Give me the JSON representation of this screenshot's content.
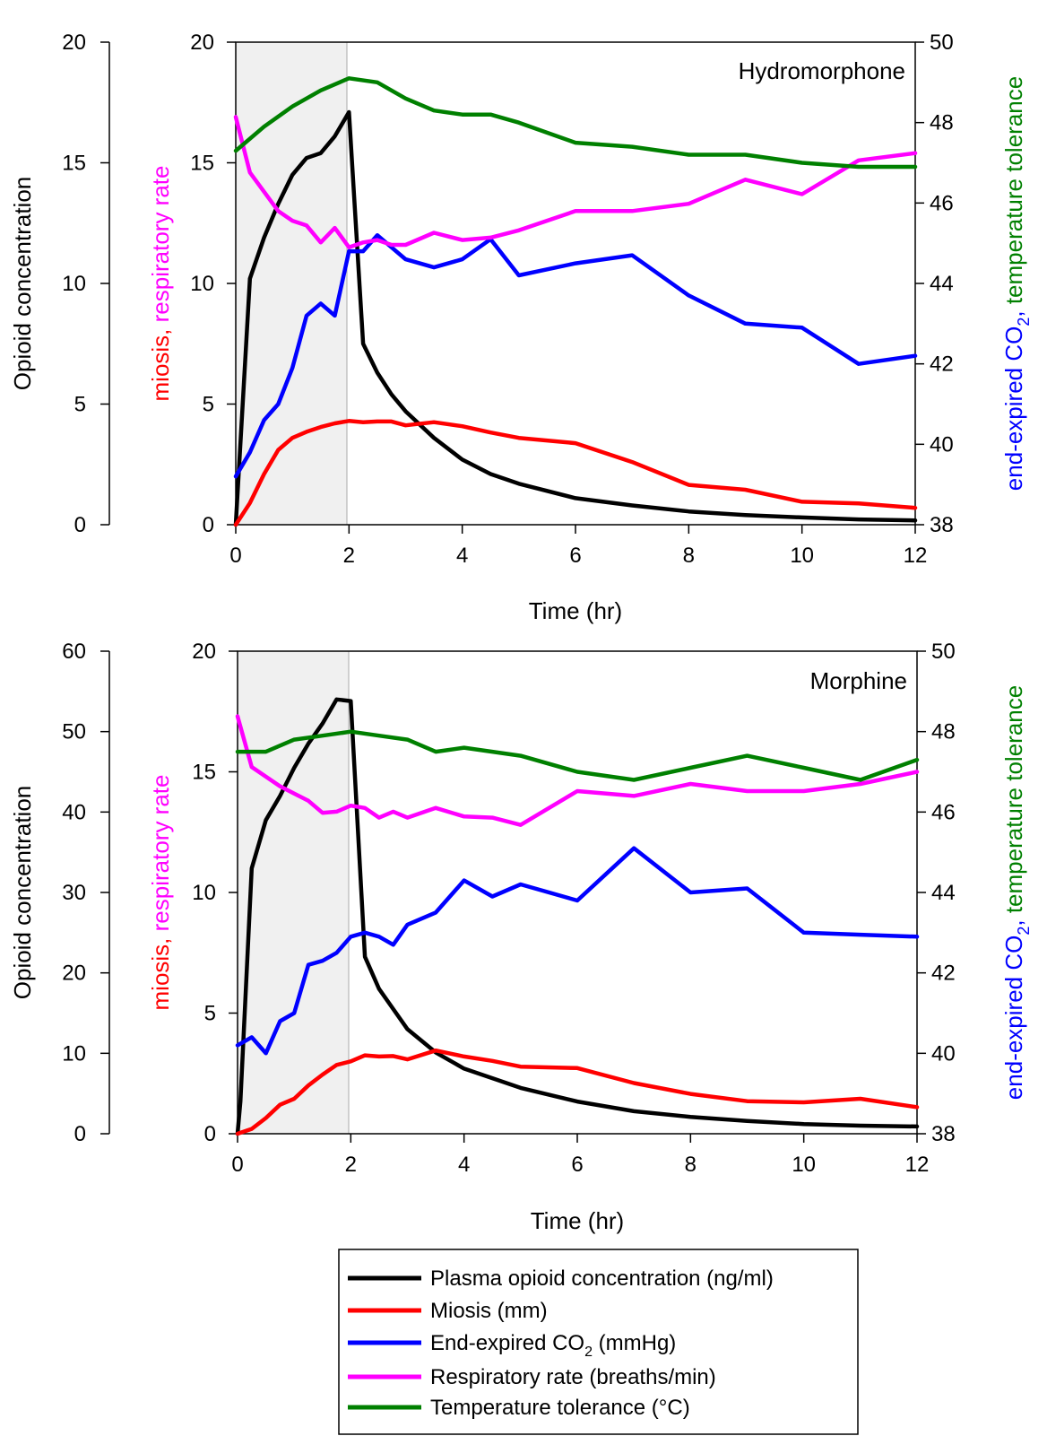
{
  "colors": {
    "concentration": "#000000",
    "miosis": "#ff0000",
    "co2": "#0000ff",
    "resp": "#ff00ff",
    "temp": "#008000",
    "shade": "#f0f0f0"
  },
  "legend": {
    "items": [
      {
        "key": "concentration",
        "label": "Plasma opioid concentration (ng/ml)"
      },
      {
        "key": "miosis",
        "label": "Miosis (mm)"
      },
      {
        "key": "co2",
        "label_pre": "End-expired CO",
        "label_sub": "2",
        "label_post": " (mmHg)"
      },
      {
        "key": "resp",
        "label": "Respiratory rate (breaths/min)"
      },
      {
        "key": "temp",
        "label": "Temperature tolerance (°C)"
      }
    ]
  },
  "axis_titles": {
    "left_outer": "Opioid concentration",
    "left_inner_red": "miosis,",
    "left_inner_magenta": " respiratory rate",
    "right_blue_pre": "end-expired CO",
    "right_blue_sub": "2",
    "right_blue_comma": ",",
    "right_green": " temperature tolerance",
    "x": "Time (hr)"
  },
  "chart_data": [
    {
      "type": "line",
      "panel_label": "Hydromorphone",
      "xlabel": "Time (hr)",
      "xlim": [
        0,
        12
      ],
      "xticks": [
        0,
        2,
        4,
        6,
        8,
        10,
        12
      ],
      "shaded_x": [
        0,
        2
      ],
      "axes": {
        "outer_left": {
          "range": [
            0,
            20
          ],
          "ticks": [
            0,
            5,
            10,
            15,
            20
          ],
          "label": "Opioid concentration"
        },
        "inner_left": {
          "range": [
            0,
            20
          ],
          "ticks": [
            0,
            5,
            10,
            15,
            20
          ],
          "label": "miosis, respiratory rate"
        },
        "right": {
          "range": [
            38,
            50
          ],
          "ticks": [
            38,
            40,
            42,
            44,
            46,
            48,
            50
          ],
          "label": "end-expired CO2, temperature tolerance"
        }
      },
      "series": [
        {
          "name": "Plasma opioid concentration (ng/ml)",
          "key": "concentration",
          "axis": "outer_left",
          "x": [
            0,
            0.25,
            0.5,
            0.75,
            1,
            1.25,
            1.5,
            1.75,
            2,
            2.25,
            2.5,
            2.75,
            3,
            3.5,
            4,
            4.5,
            5,
            6,
            7,
            8,
            9,
            10,
            11,
            12
          ],
          "y": [
            0,
            10.2,
            11.9,
            13.3,
            14.5,
            15.2,
            15.4,
            16.1,
            17.1,
            7.5,
            6.3,
            5.4,
            4.7,
            3.6,
            2.7,
            2.1,
            1.7,
            1.1,
            0.8,
            0.55,
            0.4,
            0.3,
            0.22,
            0.18
          ]
        },
        {
          "name": "Miosis (mm)",
          "key": "miosis",
          "axis": "inner_left",
          "x": [
            0,
            0.25,
            0.5,
            0.75,
            1,
            1.25,
            1.5,
            1.75,
            2,
            2.25,
            2.5,
            2.75,
            3,
            3.5,
            4,
            4.5,
            5,
            6,
            7,
            8,
            9,
            10,
            11,
            12
          ],
          "y": [
            0,
            0.9,
            2.1,
            3.1,
            3.6,
            3.85,
            4.05,
            4.2,
            4.3,
            4.25,
            4.28,
            4.28,
            4.12,
            4.25,
            4.08,
            3.82,
            3.6,
            3.38,
            2.6,
            1.65,
            1.45,
            0.95,
            0.88,
            0.7
          ]
        },
        {
          "name": "End-expired CO2 (mmHg)",
          "key": "co2",
          "axis": "right",
          "x": [
            0,
            0.25,
            0.5,
            0.75,
            1,
            1.25,
            1.5,
            1.75,
            2,
            2.25,
            2.5,
            2.75,
            3,
            3.5,
            4,
            4.5,
            5,
            6,
            7,
            8,
            9,
            10,
            11,
            12
          ],
          "y": [
            39.2,
            39.8,
            40.6,
            41.0,
            41.9,
            43.2,
            43.5,
            43.2,
            44.8,
            44.8,
            45.2,
            44.9,
            44.6,
            44.4,
            44.6,
            45.1,
            44.2,
            44.5,
            44.7,
            43.7,
            43.0,
            42.9,
            42.0,
            42.2
          ]
        },
        {
          "name": "Respiratory rate (breaths/min)",
          "key": "resp",
          "axis": "inner_left",
          "x": [
            0,
            0.25,
            0.5,
            0.75,
            1,
            1.25,
            1.5,
            1.75,
            2,
            2.25,
            2.5,
            2.75,
            3,
            3.5,
            4,
            4.5,
            5,
            6,
            7,
            8,
            9,
            10,
            11,
            12
          ],
          "y": [
            16.9,
            14.6,
            13.8,
            13.0,
            12.6,
            12.4,
            11.7,
            12.3,
            11.5,
            11.7,
            11.8,
            11.6,
            11.6,
            12.1,
            11.8,
            11.9,
            12.2,
            13.0,
            13.0,
            13.3,
            14.3,
            13.7,
            15.1,
            15.4
          ]
        },
        {
          "name": "Temperature tolerance (°C)",
          "key": "temp",
          "axis": "right",
          "x": [
            0,
            0.5,
            1,
            1.5,
            2,
            2.5,
            3,
            3.5,
            4,
            4.5,
            5,
            6,
            7,
            8,
            9,
            10,
            11,
            12
          ],
          "y": [
            47.3,
            47.9,
            48.4,
            48.8,
            49.1,
            49.0,
            48.6,
            48.3,
            48.2,
            48.2,
            48.0,
            47.5,
            47.4,
            47.2,
            47.2,
            47.0,
            46.9,
            46.9
          ]
        }
      ]
    },
    {
      "type": "line",
      "panel_label": "Morphine",
      "xlabel": "Time (hr)",
      "xlim": [
        0,
        12
      ],
      "xticks": [
        0,
        2,
        4,
        6,
        8,
        10,
        12
      ],
      "shaded_x": [
        0,
        2
      ],
      "axes": {
        "outer_left": {
          "range": [
            0,
            60
          ],
          "ticks": [
            0,
            10,
            20,
            30,
            40,
            50,
            60
          ],
          "label": "Opioid concentration"
        },
        "inner_left": {
          "range": [
            0,
            20
          ],
          "ticks": [
            0,
            5,
            10,
            15,
            20
          ],
          "label": "miosis, respiratory rate"
        },
        "right": {
          "range": [
            38,
            50
          ],
          "ticks": [
            38,
            40,
            42,
            44,
            46,
            48,
            50
          ],
          "label": "end-expired CO2, temperature tolerance"
        }
      },
      "series": [
        {
          "name": "Plasma opioid concentration (ng/ml)",
          "key": "concentration",
          "axis": "outer_left",
          "x": [
            0,
            0.05,
            0.25,
            0.5,
            0.75,
            1,
            1.25,
            1.5,
            1.75,
            2,
            2.25,
            2.5,
            2.75,
            3,
            3.5,
            4,
            4.5,
            5,
            6,
            7,
            8,
            9,
            10,
            11,
            12
          ],
          "y": [
            0,
            4,
            33,
            39,
            42,
            45.5,
            48.5,
            51,
            54,
            53.8,
            22,
            18,
            15.5,
            13,
            10.1,
            8.1,
            6.9,
            5.7,
            4,
            2.8,
            2.1,
            1.6,
            1.2,
            1.0,
            0.9
          ]
        },
        {
          "name": "Miosis (mm)",
          "key": "miosis",
          "axis": "inner_left",
          "x": [
            0,
            0.25,
            0.5,
            0.75,
            1,
            1.25,
            1.5,
            1.75,
            2,
            2.25,
            2.5,
            2.75,
            3,
            3.5,
            4,
            4.5,
            5,
            6,
            7,
            8,
            9,
            10,
            11,
            12
          ],
          "y": [
            0,
            0.2,
            0.65,
            1.2,
            1.45,
            2.0,
            2.45,
            2.85,
            3.0,
            3.25,
            3.2,
            3.22,
            3.08,
            3.45,
            3.2,
            3.02,
            2.78,
            2.72,
            2.1,
            1.65,
            1.35,
            1.3,
            1.45,
            1.1
          ]
        },
        {
          "name": "End-expired CO2 (mmHg)",
          "key": "co2",
          "axis": "right",
          "x": [
            0,
            0.25,
            0.5,
            0.75,
            1,
            1.25,
            1.5,
            1.75,
            2,
            2.25,
            2.5,
            2.75,
            3,
            3.5,
            4,
            4.5,
            5,
            6,
            7,
            8,
            9,
            10,
            11,
            12
          ],
          "y": [
            40.2,
            40.4,
            40.0,
            40.8,
            41.0,
            42.2,
            42.3,
            42.5,
            42.9,
            43.0,
            42.9,
            42.7,
            43.2,
            43.5,
            44.3,
            43.9,
            44.2,
            43.8,
            45.1,
            44.0,
            44.1,
            43.0,
            42.95,
            42.9
          ]
        },
        {
          "name": "Respiratory rate (breaths/min)",
          "key": "resp",
          "axis": "inner_left",
          "x": [
            0,
            0.25,
            0.5,
            0.75,
            1,
            1.25,
            1.5,
            1.75,
            2,
            2.25,
            2.5,
            2.75,
            3,
            3.5,
            4,
            4.5,
            5,
            6,
            7,
            8,
            9,
            10,
            11,
            12
          ],
          "y": [
            17.3,
            15.2,
            14.8,
            14.4,
            14.1,
            13.8,
            13.3,
            13.35,
            13.6,
            13.5,
            13.1,
            13.35,
            13.1,
            13.5,
            13.15,
            13.1,
            12.8,
            14.2,
            14.0,
            14.5,
            14.2,
            14.2,
            14.5,
            15.0
          ]
        },
        {
          "name": "Temperature tolerance (°C)",
          "key": "temp",
          "axis": "right",
          "x": [
            0,
            0.5,
            1,
            1.5,
            2,
            2.5,
            3,
            3.5,
            4,
            4.5,
            5,
            6,
            7,
            8,
            9,
            10,
            11,
            12
          ],
          "y": [
            47.5,
            47.5,
            47.8,
            47.9,
            48.0,
            47.9,
            47.8,
            47.5,
            47.6,
            47.5,
            47.4,
            47.0,
            46.8,
            47.1,
            47.4,
            47.1,
            46.8,
            47.3
          ]
        }
      ]
    }
  ]
}
